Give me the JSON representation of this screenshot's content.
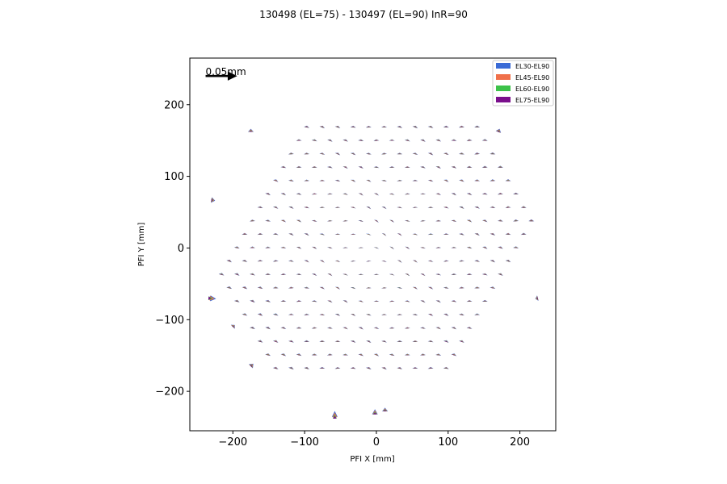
{
  "chart_data": {
    "type": "scatter",
    "title": "130498 (EL=75) - 130497 (EL=90) InR=90",
    "xlabel": "PFI X [mm]",
    "ylabel": "PFI Y [mm]",
    "xlim": [
      -260,
      250
    ],
    "ylim": [
      -255,
      265
    ],
    "xticks": [
      -200,
      -100,
      0,
      100,
      200
    ],
    "yticks": [
      -200,
      -100,
      0,
      100,
      200
    ],
    "xtick_labels": [
      "−200",
      "−100",
      "0",
      "100",
      "200"
    ],
    "ytick_labels": [
      "−200",
      "−100",
      "0",
      "100",
      "200"
    ],
    "grid": false,
    "legend_position": "top-right",
    "scale_arrow": {
      "label": "0.05mm",
      "x": -238,
      "y": 240,
      "length_mm": 0.05
    },
    "arrow_scale": "0.05 mm of displacement drawn as 44 mm on the PFI axes",
    "series": [
      {
        "name": "EL30-EL90",
        "color": "#3a6bd6"
      },
      {
        "name": "EL45-EL90",
        "color": "#f0704a"
      },
      {
        "name": "EL60-EL90",
        "color": "#3cc24a"
      },
      {
        "name": "EL75-EL90",
        "color": "#7a0f8c"
      }
    ],
    "vectors": [
      {
        "x": -234,
        "y": -70,
        "dx": 0.012,
        "dy": -0.001
      },
      {
        "x": -230,
        "y": 67,
        "dx": 0.006,
        "dy": -0.001
      },
      {
        "x": -175,
        "y": 162,
        "dx": 0.0,
        "dy": 0.005
      },
      {
        "x": -175,
        "y": -165,
        "dx": 0.004,
        "dy": 0.004
      },
      {
        "x": 170,
        "y": 162,
        "dx": 0.002,
        "dy": 0.005
      },
      {
        "x": 225,
        "y": -70,
        "dx": -0.004,
        "dy": -0.001
      },
      {
        "x": -58,
        "y": -238,
        "dx": 0.0,
        "dy": 0.012
      },
      {
        "x": -2,
        "y": -232,
        "dx": 0.0,
        "dy": 0.008
      },
      {
        "x": 12,
        "y": -228,
        "dx": 0.0,
        "dy": 0.006
      },
      {
        "x": -200,
        "y": -110,
        "dx": 0.003,
        "dy": 0.003
      }
    ]
  }
}
